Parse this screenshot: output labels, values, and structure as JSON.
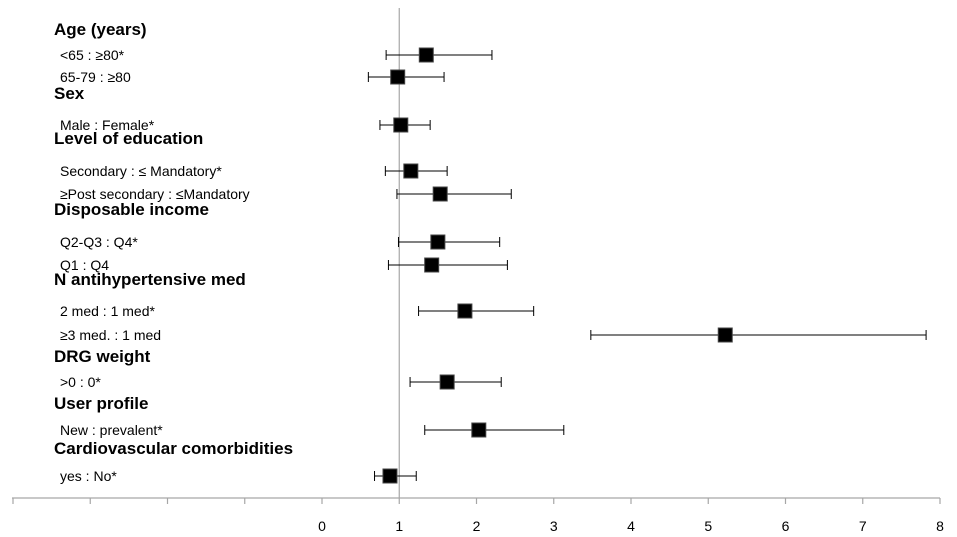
{
  "chart_data": {
    "type": "forest",
    "title": "",
    "xlabel": "",
    "ylabel": "",
    "xlim": [
      -4,
      8
    ],
    "reference_line": 1,
    "x_tick_labels": [
      "0",
      "1",
      "2",
      "3",
      "4",
      "5",
      "6",
      "7",
      "8"
    ],
    "x_tick_values": [
      0,
      1,
      2,
      3,
      4,
      5,
      6,
      7,
      8
    ],
    "grid": false,
    "legend": "none",
    "groups": [
      {
        "label": "Age (years)",
        "rows": [
          {
            "label": "<65 : ≥80*",
            "estimate": 1.35,
            "lower": 0.83,
            "upper": 2.2
          },
          {
            "label": "65-79  : ≥80",
            "estimate": 0.98,
            "lower": 0.6,
            "upper": 1.58
          }
        ]
      },
      {
        "label": "Sex",
        "rows": [
          {
            "label": "Male : Female*",
            "estimate": 1.02,
            "lower": 0.75,
            "upper": 1.4
          }
        ]
      },
      {
        "label": "Level of education",
        "rows": [
          {
            "label": "Secondary : ≤ Mandatory*",
            "estimate": 1.15,
            "lower": 0.82,
            "upper": 1.62
          },
          {
            "label": "≥Post secondary : ≤Mandatory",
            "estimate": 1.53,
            "lower": 0.97,
            "upper": 2.45
          }
        ]
      },
      {
        "label": "Disposable income",
        "rows": [
          {
            "label": "Q2-Q3 : Q4*",
            "estimate": 1.5,
            "lower": 0.99,
            "upper": 2.3
          },
          {
            "label": "Q1 : Q4",
            "estimate": 1.42,
            "lower": 0.86,
            "upper": 2.4
          }
        ]
      },
      {
        "label": "N antihypertensive med",
        "rows": [
          {
            "label": "2 med : 1 med*",
            "estimate": 1.85,
            "lower": 1.25,
            "upper": 2.74
          },
          {
            "label": "≥3 med. : 1 med",
            "estimate": 5.22,
            "lower": 3.48,
            "upper": 7.82
          }
        ]
      },
      {
        "label": "DRG weight",
        "rows": [
          {
            "label": ">0 : 0*",
            "estimate": 1.62,
            "lower": 1.14,
            "upper": 2.32
          }
        ]
      },
      {
        "label": "User profile",
        "rows": [
          {
            "label": "New : prevalent*",
            "estimate": 2.03,
            "lower": 1.33,
            "upper": 3.13
          }
        ]
      },
      {
        "label": "Cardiovascular comorbidities",
        "rows": [
          {
            "label": "yes : No*",
            "estimate": 0.88,
            "lower": 0.68,
            "upper": 1.22
          }
        ]
      }
    ],
    "colors": {
      "marker": "#000000",
      "marker_border": "#444444",
      "line": "#000000",
      "reference": "#a6a6a6",
      "axis": "#a6a6a6"
    }
  }
}
